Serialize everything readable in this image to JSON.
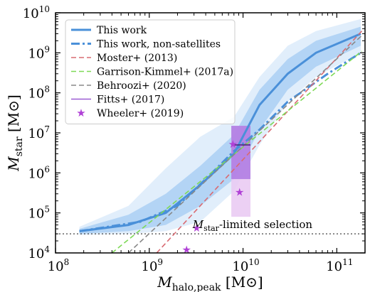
{
  "chart_data": {
    "type": "line",
    "x_scale": "log",
    "y_scale": "log",
    "xlim": [
      100000000,
      200000000000
    ],
    "ylim": [
      10000,
      10000000000
    ],
    "xlabel": "M_halo,peak [M⊙]",
    "ylabel": "M_star [M⊙]",
    "x_ticks": [
      {
        "value": 100000000,
        "mantissa": "10",
        "exponent": "8"
      },
      {
        "value": 1000000000,
        "mantissa": "10",
        "exponent": "9"
      },
      {
        "value": 10000000000,
        "mantissa": "10",
        "exponent": "10"
      },
      {
        "value": 100000000000,
        "mantissa": "10",
        "exponent": "11"
      }
    ],
    "y_ticks": [
      {
        "value": 10000,
        "mantissa": "10",
        "exponent": "4"
      },
      {
        "value": 100000,
        "mantissa": "10",
        "exponent": "5"
      },
      {
        "value": 1000000,
        "mantissa": "10",
        "exponent": "6"
      },
      {
        "value": 10000000,
        "mantissa": "10",
        "exponent": "7"
      },
      {
        "value": 100000000,
        "mantissa": "10",
        "exponent": "8"
      },
      {
        "value": 1000000000,
        "mantissa": "10",
        "exponent": "9"
      },
      {
        "value": 10000000000,
        "mantissa": "10",
        "exponent": "10"
      }
    ],
    "legend_position": "top-left",
    "series": [
      {
        "name": "This work",
        "style": "solid",
        "color": "#4a90d9",
        "x": [
          180000000,
          600000000,
          1500000000,
          3500000000,
          8000000000,
          15000000000,
          30000000000,
          60000000000,
          180000000000
        ],
        "y": [
          35000,
          50000,
          100000,
          500000,
          3000000,
          50000000,
          300000000,
          1000000000,
          3000000000
        ],
        "band_inner": {
          "color": "#b3d4f5",
          "lower": [
            30000,
            35000,
            50000,
            150000,
            700000,
            12000000,
            120000000,
            450000000,
            1500000000
          ],
          "upper": [
            40000,
            90000,
            300000,
            1500000,
            9000000,
            120000000,
            700000000,
            2000000000,
            4500000000
          ]
        },
        "band_outer": {
          "color": "#e1eefb",
          "lower": [
            28000,
            30000,
            35000,
            60000,
            350000,
            5000000,
            60000000,
            250000000,
            1000000000
          ],
          "upper": [
            45000,
            150000,
            1300000,
            8000000,
            25000000,
            250000000,
            1500000000,
            3500000000,
            7000000000
          ]
        }
      },
      {
        "name": "This work, non-satellites",
        "style": "dashdot",
        "color": "#4a90d9",
        "x": [
          180000000,
          800000000,
          2000000000,
          4000000000,
          8000000000,
          15000000000,
          30000000000,
          80000000000,
          180000000000
        ],
        "y": [
          35000,
          60000,
          150000,
          700000,
          3500000,
          12000000,
          60000000,
          300000000,
          1000000000
        ]
      },
      {
        "name": "Moster+ (2013)",
        "style": "dashed",
        "color": "#d96b72",
        "x": [
          1200000000,
          185000000000
        ],
        "y": [
          10000,
          3500000000
        ]
      },
      {
        "name": "Garrison-Kimmel+ (2017a)",
        "style": "dashed",
        "color": "#7ed957",
        "x": [
          400000000,
          185000000000
        ],
        "y": [
          10000,
          1100000000
        ]
      },
      {
        "name": "Behroozi+ (2020)",
        "style": "dashed",
        "color": "#888888",
        "x": [
          600000000,
          185000000000
        ],
        "y": [
          10000,
          2700000000
        ]
      },
      {
        "name": "Fitts+ (2017)",
        "style": "solid",
        "color": "#9a5bd4",
        "box": {
          "x_range": [
            7500000000,
            12000000000
          ],
          "median": 5000000,
          "inner": [
            700000,
            15000000
          ],
          "outer": [
            80000,
            15000000
          ]
        }
      },
      {
        "name": "Wheeler+ (2019)",
        "style": "marker",
        "color": "#b041d6",
        "x": [
          2500000000,
          3200000000,
          7800000000,
          9200000000
        ],
        "y": [
          12000,
          42000,
          5200000,
          330000
        ]
      }
    ],
    "annotations": [
      {
        "text_main": "M",
        "text_sub": "star",
        "text_rest": "-limited selection",
        "x": 2900000000,
        "y": 42000
      }
    ],
    "reference_lines": [
      {
        "type": "horizontal",
        "y": 30000,
        "style": "dotted",
        "color": "#444444"
      }
    ]
  }
}
